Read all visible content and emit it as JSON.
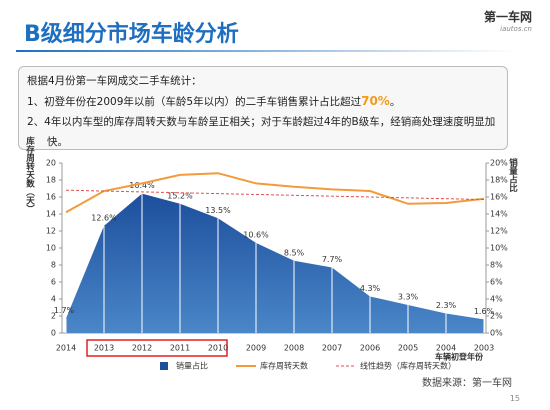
{
  "header": {
    "title": "B级细分市场车龄分析",
    "logo": "第一车网",
    "logo_url": "iautos.cn"
  },
  "summary": {
    "intro": "根据4月份第一车网成交二手车统计：",
    "point1": {
      "before": "1、初登年份在2009年以前（车龄5年以内）的二手车销售累计占比超过",
      "highlight": "70%",
      "after": "。"
    },
    "point2": "2、4年以内车型的库存周转天数与车龄呈正相关；对于车龄超过4年的B级车，经销商处理速度明显加快。"
  },
  "footer": {
    "source": "数据来源：第一车网",
    "page": "15"
  },
  "chart_data": {
    "type": "area-line",
    "xlabel": "车辆初登年份",
    "ylabel": "库存周转天数（天）",
    "y2label": "销量占比",
    "categories": [
      "2014",
      "2013",
      "2012",
      "2011",
      "2010",
      "2009",
      "2008",
      "2007",
      "2006",
      "2005",
      "2004",
      "2003"
    ],
    "series": [
      {
        "name": "销量占比",
        "kind": "area",
        "axis": "y2",
        "color": "#1d4f9c",
        "values": [
          1.7,
          12.6,
          16.4,
          15.2,
          13.5,
          10.6,
          8.5,
          7.7,
          4.3,
          3.3,
          2.3,
          1.6
        ],
        "value_labels": [
          "1.7%",
          "12.6%",
          "16.4%",
          "15.2%",
          "13.5%",
          "10.6%",
          "8.5%",
          "7.7%",
          "4.3%",
          "3.3%",
          "2.3%",
          "1.6%"
        ]
      },
      {
        "name": "库存周转天数",
        "kind": "line",
        "axis": "y",
        "color": "#f39a3b",
        "values": [
          14.2,
          16.7,
          17.6,
          18.6,
          18.8,
          17.6,
          17.2,
          16.9,
          16.7,
          15.2,
          15.3,
          15.8
        ]
      },
      {
        "name": "线性趋势（库存周转天数）",
        "kind": "trend",
        "axis": "y",
        "color": "#e05050",
        "values": [
          16.8,
          16.7,
          16.6,
          16.5,
          16.4,
          16.3,
          16.2,
          16.1,
          16.0,
          15.9,
          15.8,
          15.7
        ]
      }
    ],
    "ylim": [
      0,
      20
    ],
    "yticks": [
      0,
      2,
      4,
      6,
      8,
      10,
      12,
      14,
      16,
      18,
      20
    ],
    "y2lim": [
      0,
      20
    ],
    "y2ticks": [
      {
        "value": 0,
        "label": "0%"
      },
      {
        "value": 2,
        "label": "2%"
      },
      {
        "value": 4,
        "label": "4%"
      },
      {
        "value": 6,
        "label": "6%"
      },
      {
        "value": 8,
        "label": "8%"
      },
      {
        "value": 10,
        "label": "10%"
      },
      {
        "value": 12,
        "label": "12%"
      },
      {
        "value": 14,
        "label": "14%"
      },
      {
        "value": 16,
        "label": "16%"
      },
      {
        "value": 18,
        "label": "18%"
      },
      {
        "value": 20,
        "label": "20%"
      }
    ]
  }
}
